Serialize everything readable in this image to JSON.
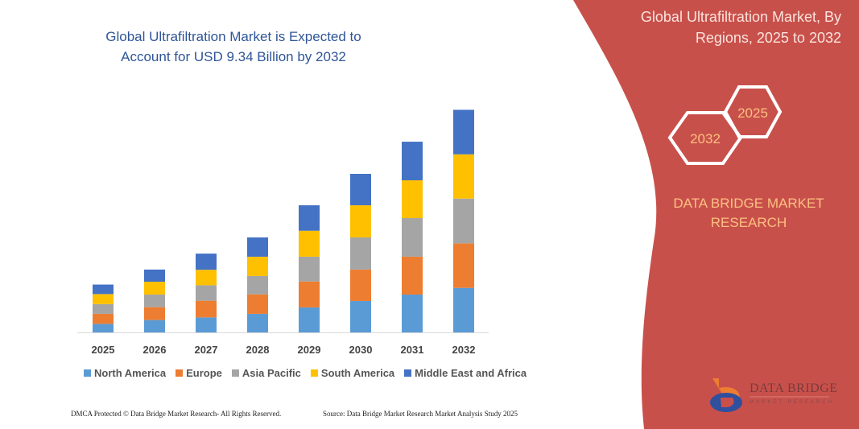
{
  "title": "Global Ultrafiltration Market is Expected to Account for USD 9.34 Billion by 2032",
  "side_panel": {
    "title": "Global Ultrafiltration Market, By Regions, 2025 to 2032",
    "hex_start": "2025",
    "hex_end": "2032",
    "brand": "DATA BRIDGE MARKET RESEARCH",
    "logo_text": "DATA BRIDGE",
    "logo_sub": "MARKET RESEARCH"
  },
  "footer": {
    "left": "DMCA Protected © Data Bridge Market Research-  All Rights Reserved.",
    "right": "Source: Data Bridge Market Research  Market Analysis Study 2025"
  },
  "colors": {
    "panel": "#c8504b",
    "title": "#2f5597"
  },
  "chart_data": {
    "type": "bar",
    "stacked": true,
    "title": "Global Ultrafiltration Market is Expected to Account for USD 9.34 Billion by 2032",
    "categories": [
      "2025",
      "2026",
      "2027",
      "2028",
      "2029",
      "2030",
      "2031",
      "2032"
    ],
    "unit": "USD Billion (estimated)",
    "grid": false,
    "y_axis_shown": false,
    "legend_position": "bottom",
    "series": [
      {
        "name": "North America",
        "color": "#5b9bd5",
        "values": [
          0.36,
          0.52,
          0.63,
          0.78,
          1.05,
          1.32,
          1.59,
          1.87
        ]
      },
      {
        "name": "Europe",
        "color": "#ed7d31",
        "values": [
          0.42,
          0.54,
          0.7,
          0.82,
          1.09,
          1.32,
          1.59,
          1.87
        ]
      },
      {
        "name": "Asia Pacific",
        "color": "#a5a5a5",
        "values": [
          0.41,
          0.53,
          0.65,
          0.77,
          1.04,
          1.35,
          1.62,
          1.88
        ]
      },
      {
        "name": "South America",
        "color": "#ffc000",
        "values": [
          0.42,
          0.54,
          0.65,
          0.81,
          1.09,
          1.35,
          1.59,
          1.86
        ]
      },
      {
        "name": "Middle East and Africa",
        "color": "#4472c4",
        "values": [
          0.4,
          0.51,
          0.68,
          0.81,
          1.07,
          1.32,
          1.62,
          1.87
        ]
      }
    ]
  }
}
